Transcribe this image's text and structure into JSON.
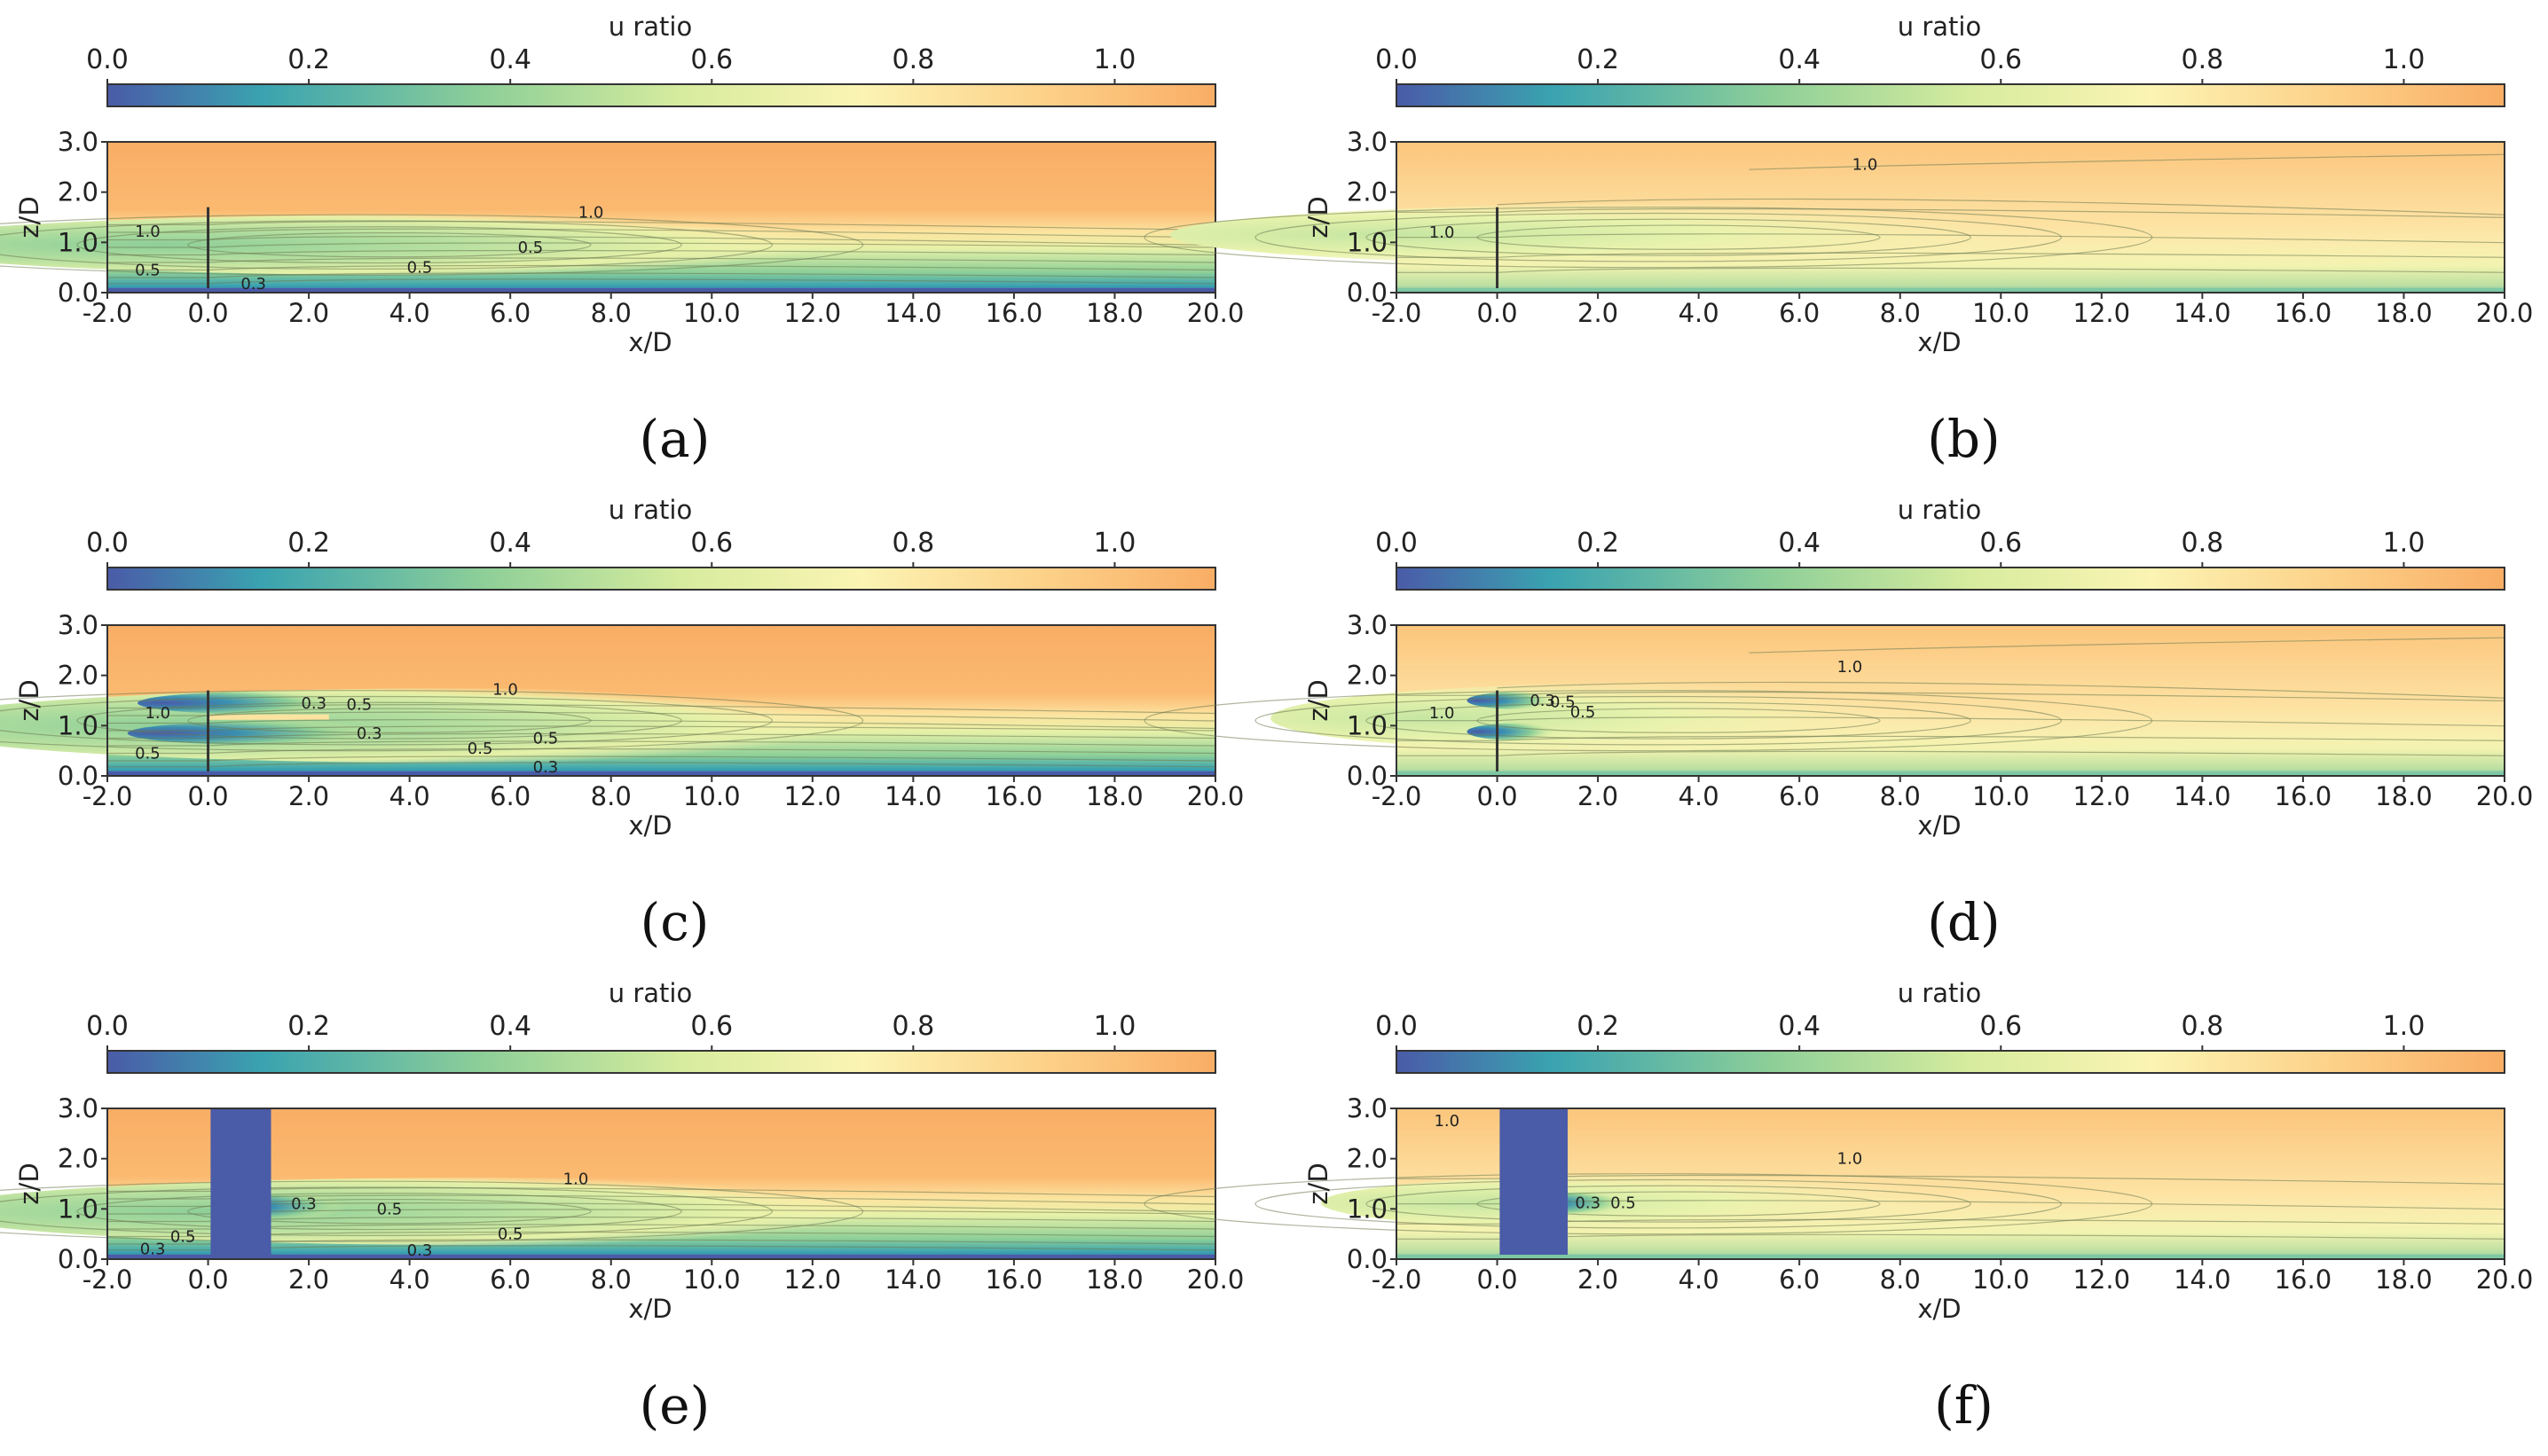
{
  "figure": {
    "panels": [
      {
        "id": "a",
        "caption": "(a)",
        "has_block": false,
        "block_x_end": 0,
        "cell_labels": [
          {
            "text": "1.0",
            "x": -1.2,
            "z": 1.22
          },
          {
            "text": "1.0",
            "x": 7.6,
            "z": 1.6
          },
          {
            "text": "0.5",
            "x": -1.2,
            "z": 0.45
          },
          {
            "text": "0.5",
            "x": 4.2,
            "z": 0.5
          },
          {
            "text": "0.5",
            "x": 6.4,
            "z": 0.9
          },
          {
            "text": "0.3",
            "x": 0.9,
            "z": 0.18
          }
        ]
      },
      {
        "id": "b",
        "caption": "(b)",
        "has_block": false,
        "block_x_end": 0,
        "cell_labels": [
          {
            "text": "1.0",
            "x": 7.3,
            "z": 2.55
          },
          {
            "text": "1.0",
            "x": -1.1,
            "z": 1.2
          }
        ]
      },
      {
        "id": "c",
        "caption": "(c)",
        "has_block": false,
        "block_x_end": 0,
        "cell_labels": [
          {
            "text": "1.0",
            "x": -1.0,
            "z": 1.25
          },
          {
            "text": "1.0",
            "x": 5.9,
            "z": 1.72
          },
          {
            "text": "0.3",
            "x": 2.1,
            "z": 1.45
          },
          {
            "text": "0.5",
            "x": 3.0,
            "z": 1.42
          },
          {
            "text": "0.3",
            "x": 3.2,
            "z": 0.85
          },
          {
            "text": "0.5",
            "x": -1.2,
            "z": 0.45
          },
          {
            "text": "0.5",
            "x": 5.4,
            "z": 0.55
          },
          {
            "text": "0.5",
            "x": 6.7,
            "z": 0.75
          },
          {
            "text": "0.3",
            "x": 6.7,
            "z": 0.18
          }
        ]
      },
      {
        "id": "d",
        "caption": "(d)",
        "has_block": false,
        "block_x_end": 0,
        "cell_labels": [
          {
            "text": "1.0",
            "x": 7.0,
            "z": 2.17
          },
          {
            "text": "1.0",
            "x": -1.1,
            "z": 1.25
          },
          {
            "text": "0.3",
            "x": 0.9,
            "z": 1.5
          },
          {
            "text": "0.5",
            "x": 1.3,
            "z": 1.47
          },
          {
            "text": "0.5",
            "x": 1.7,
            "z": 1.27
          }
        ]
      },
      {
        "id": "e",
        "caption": "(e)",
        "has_block": true,
        "block_x_end": 1.25,
        "cell_labels": [
          {
            "text": "1.0",
            "x": 7.3,
            "z": 1.6
          },
          {
            "text": "0.3",
            "x": 1.9,
            "z": 1.1
          },
          {
            "text": "0.5",
            "x": 3.6,
            "z": 1.0
          },
          {
            "text": "0.5",
            "x": 6.0,
            "z": 0.5
          },
          {
            "text": "0.5",
            "x": -0.5,
            "z": 0.45
          },
          {
            "text": "0.3",
            "x": -1.1,
            "z": 0.2
          },
          {
            "text": "0.3",
            "x": 4.2,
            "z": 0.18
          }
        ]
      },
      {
        "id": "f",
        "caption": "(f)",
        "has_block": true,
        "block_x_end": 1.4,
        "cell_labels": [
          {
            "text": "1.0",
            "x": -1.0,
            "z": 2.75
          },
          {
            "text": "1.0",
            "x": 7.0,
            "z": 2.0
          },
          {
            "text": "0.3",
            "x": 1.8,
            "z": 1.12
          },
          {
            "text": "0.5",
            "x": 2.5,
            "z": 1.12
          }
        ]
      }
    ]
  },
  "chart_data": {
    "type": "heatmap",
    "colorbar": {
      "label": "u ratio",
      "min": 0.0,
      "max": 1.1,
      "ticks": [
        "0.0",
        "0.2",
        "0.4",
        "0.6",
        "0.8",
        "1.0"
      ],
      "tick_values": [
        0.0,
        0.2,
        0.4,
        0.6,
        0.8,
        1.0
      ],
      "colors": [
        "#4a5ba8",
        "#3aa3b0",
        "#8ecf98",
        "#d7ec9e",
        "#fbf4b3",
        "#fdd28a",
        "#f9ad65"
      ]
    },
    "xlabel": "x/D",
    "ylabel": "z/D",
    "xlim": [
      -2.0,
      20.0
    ],
    "ylim": [
      0.0,
      3.0
    ],
    "x_ticks": [
      "-2.0",
      "0.0",
      "2.0",
      "4.0",
      "6.0",
      "8.0",
      "10.0",
      "12.0",
      "14.0",
      "16.0",
      "18.0",
      "20.0"
    ],
    "x_tick_values": [
      -2,
      0,
      2,
      4,
      6,
      8,
      10,
      12,
      14,
      16,
      18,
      20
    ],
    "y_ticks": [
      "0.0",
      "1.0",
      "2.0",
      "3.0"
    ],
    "y_tick_values": [
      0,
      1,
      2,
      3
    ],
    "contour_levels": [
      0.3,
      0.5,
      1.0
    ],
    "panels": [
      "(a)",
      "(b)",
      "(c)",
      "(d)",
      "(e)",
      "(f)"
    ]
  }
}
